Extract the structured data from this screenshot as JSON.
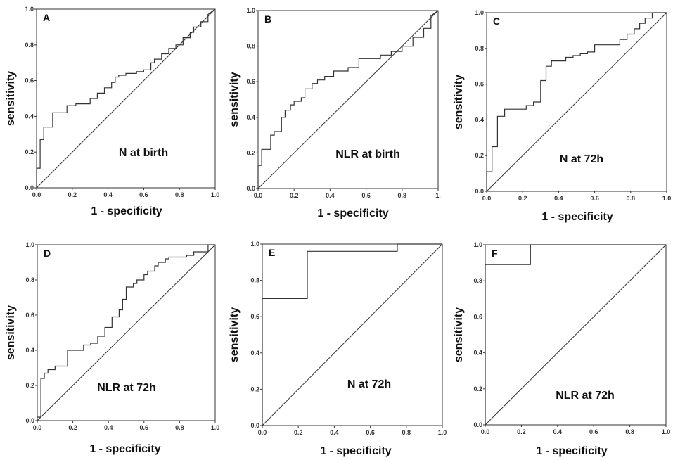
{
  "chart_data": [
    {
      "panel": "A",
      "type": "line",
      "title": "N at birth",
      "xlabel": "1 - specificity",
      "ylabel": "sensitivity",
      "xlim": [
        0,
        1
      ],
      "ylim": [
        0,
        1
      ],
      "xtick_labels": [
        "0.0",
        "0.2",
        "0.4",
        "0.6",
        "0.8",
        "1.0"
      ],
      "ytick_labels": [
        "0.0",
        "0.2",
        "0.4",
        "0.6",
        "0.8",
        "1.0"
      ],
      "series": [
        {
          "name": "ROC",
          "x": [
            0.0,
            0.0,
            0.02,
            0.02,
            0.04,
            0.04,
            0.09,
            0.09,
            0.17,
            0.17,
            0.22,
            0.22,
            0.3,
            0.3,
            0.34,
            0.34,
            0.38,
            0.38,
            0.42,
            0.42,
            0.44,
            0.44,
            0.46,
            0.46,
            0.5,
            0.5,
            0.56,
            0.56,
            0.6,
            0.6,
            0.64,
            0.64,
            0.66,
            0.66,
            0.7,
            0.7,
            0.74,
            0.74,
            0.78,
            0.78,
            0.82,
            0.82,
            0.86,
            0.86,
            0.88,
            0.88,
            0.92,
            0.92,
            0.96,
            0.96,
            1.0
          ],
          "y": [
            0.0,
            0.11,
            0.11,
            0.27,
            0.27,
            0.34,
            0.34,
            0.42,
            0.42,
            0.46,
            0.46,
            0.47,
            0.47,
            0.5,
            0.5,
            0.53,
            0.53,
            0.56,
            0.56,
            0.59,
            0.59,
            0.62,
            0.62,
            0.63,
            0.63,
            0.64,
            0.64,
            0.65,
            0.65,
            0.66,
            0.66,
            0.7,
            0.7,
            0.72,
            0.72,
            0.75,
            0.75,
            0.78,
            0.78,
            0.8,
            0.8,
            0.84,
            0.84,
            0.87,
            0.87,
            0.9,
            0.9,
            0.93,
            0.93,
            0.97,
            1.0
          ]
        },
        {
          "name": "reference",
          "x": [
            0,
            1
          ],
          "y": [
            0,
            1
          ]
        }
      ]
    },
    {
      "panel": "B",
      "type": "line",
      "title": "NLR at birth",
      "xlabel": "1 - specificity",
      "ylabel": "sensitivity",
      "xlim": [
        0,
        1
      ],
      "ylim": [
        0,
        1
      ],
      "xtick_labels": [
        "0.0",
        "0.2",
        "0.4",
        "0.6",
        "0.8",
        "1."
      ],
      "ytick_labels": [
        "0.0",
        "0.2",
        "0.4",
        "0.6",
        "0.8",
        "1.0"
      ],
      "series": [
        {
          "name": "ROC",
          "x": [
            0.0,
            0.0,
            0.02,
            0.02,
            0.07,
            0.07,
            0.09,
            0.09,
            0.13,
            0.13,
            0.15,
            0.15,
            0.18,
            0.18,
            0.2,
            0.2,
            0.24,
            0.24,
            0.26,
            0.26,
            0.3,
            0.3,
            0.33,
            0.33,
            0.37,
            0.37,
            0.42,
            0.42,
            0.5,
            0.5,
            0.56,
            0.56,
            0.68,
            0.68,
            0.74,
            0.74,
            0.8,
            0.8,
            0.86,
            0.86,
            0.92,
            0.92,
            0.96,
            0.96,
            1.0
          ],
          "y": [
            0.0,
            0.13,
            0.13,
            0.22,
            0.22,
            0.3,
            0.3,
            0.32,
            0.32,
            0.4,
            0.4,
            0.44,
            0.44,
            0.47,
            0.47,
            0.49,
            0.49,
            0.51,
            0.51,
            0.56,
            0.56,
            0.59,
            0.59,
            0.61,
            0.61,
            0.63,
            0.63,
            0.66,
            0.66,
            0.68,
            0.68,
            0.73,
            0.73,
            0.75,
            0.75,
            0.77,
            0.77,
            0.8,
            0.8,
            0.85,
            0.85,
            0.9,
            0.9,
            0.97,
            1.0
          ]
        },
        {
          "name": "reference",
          "x": [
            0,
            1
          ],
          "y": [
            0,
            1
          ]
        }
      ]
    },
    {
      "panel": "C",
      "type": "line",
      "title": "N at 72h",
      "xlabel": "1 - specificity",
      "ylabel": "sensitivity",
      "xlim": [
        0,
        1
      ],
      "ylim": [
        0,
        1
      ],
      "xtick_labels": [
        "0.0",
        "0.2",
        "0.4",
        "0.6",
        "0.8",
        "1.0"
      ],
      "ytick_labels": [
        "0.0",
        "0.2",
        "0.4",
        "0.6",
        "0.8",
        "1.0"
      ],
      "series": [
        {
          "name": "ROC",
          "x": [
            0.0,
            0.0,
            0.03,
            0.03,
            0.06,
            0.06,
            0.1,
            0.1,
            0.22,
            0.22,
            0.26,
            0.26,
            0.3,
            0.3,
            0.33,
            0.33,
            0.36,
            0.36,
            0.44,
            0.44,
            0.48,
            0.48,
            0.52,
            0.52,
            0.56,
            0.56,
            0.6,
            0.6,
            0.74,
            0.74,
            0.78,
            0.78,
            0.82,
            0.82,
            0.85,
            0.85,
            0.88,
            0.88,
            0.92,
            0.92,
            1.0
          ],
          "y": [
            0.0,
            0.11,
            0.11,
            0.25,
            0.25,
            0.42,
            0.42,
            0.46,
            0.46,
            0.48,
            0.48,
            0.5,
            0.5,
            0.62,
            0.62,
            0.7,
            0.7,
            0.73,
            0.73,
            0.75,
            0.75,
            0.76,
            0.76,
            0.77,
            0.77,
            0.78,
            0.78,
            0.82,
            0.82,
            0.85,
            0.85,
            0.88,
            0.88,
            0.91,
            0.91,
            0.94,
            0.94,
            0.97,
            0.97,
            1.0,
            1.0
          ]
        },
        {
          "name": "reference",
          "x": [
            0,
            1
          ],
          "y": [
            0,
            1
          ]
        }
      ]
    },
    {
      "panel": "D",
      "type": "line",
      "title": "NLR at 72h",
      "xlabel": "1 - specificity",
      "ylabel": "sensitivity",
      "xlim": [
        0,
        1
      ],
      "ylim": [
        0,
        1
      ],
      "xtick_labels": [
        "0.0",
        "0.2",
        "0.4",
        "0.6",
        "0.8",
        "1.0"
      ],
      "ytick_labels": [
        "0.0",
        "0.2",
        "0.4",
        "0.6",
        "0.8",
        "1.0"
      ],
      "series": [
        {
          "name": "ROC",
          "x": [
            0.0,
            0.02,
            0.02,
            0.04,
            0.04,
            0.06,
            0.06,
            0.1,
            0.1,
            0.17,
            0.17,
            0.26,
            0.26,
            0.3,
            0.3,
            0.34,
            0.34,
            0.38,
            0.38,
            0.42,
            0.42,
            0.46,
            0.46,
            0.48,
            0.48,
            0.5,
            0.5,
            0.54,
            0.54,
            0.56,
            0.56,
            0.6,
            0.6,
            0.62,
            0.62,
            0.66,
            0.66,
            0.68,
            0.68,
            0.72,
            0.72,
            0.74,
            0.74,
            0.84,
            0.84,
            0.88,
            0.88,
            0.96,
            0.96,
            1.0
          ],
          "y": [
            0.02,
            0.02,
            0.24,
            0.24,
            0.27,
            0.27,
            0.29,
            0.29,
            0.31,
            0.31,
            0.4,
            0.4,
            0.43,
            0.43,
            0.44,
            0.44,
            0.48,
            0.48,
            0.53,
            0.53,
            0.59,
            0.59,
            0.63,
            0.63,
            0.69,
            0.69,
            0.76,
            0.76,
            0.78,
            0.78,
            0.8,
            0.8,
            0.83,
            0.83,
            0.85,
            0.85,
            0.88,
            0.88,
            0.9,
            0.9,
            0.92,
            0.92,
            0.93,
            0.93,
            0.94,
            0.94,
            0.96,
            0.96,
            1.0,
            1.0
          ]
        },
        {
          "name": "reference",
          "x": [
            0,
            1
          ],
          "y": [
            0,
            1
          ]
        }
      ]
    },
    {
      "panel": "E",
      "type": "line",
      "title": "N at 72h",
      "xlabel": "1 - specificity",
      "ylabel": "sensitivity",
      "xlim": [
        0,
        1
      ],
      "ylim": [
        0,
        1
      ],
      "xtick_labels": [
        "0.0",
        "0.2",
        "0.4",
        "0.6",
        "0.8",
        "1.0"
      ],
      "ytick_labels": [
        "0.0",
        "0.2",
        "0.4",
        "0.6",
        "0.8",
        "1.0"
      ],
      "series": [
        {
          "name": "ROC",
          "x": [
            0.0,
            0.0,
            0.25,
            0.25,
            0.75,
            0.75,
            1.0
          ],
          "y": [
            0.0,
            0.7,
            0.7,
            0.96,
            0.96,
            1.0,
            1.0
          ]
        },
        {
          "name": "reference",
          "x": [
            0,
            1
          ],
          "y": [
            0,
            1
          ]
        }
      ]
    },
    {
      "panel": "F",
      "type": "line",
      "title": "NLR at 72h",
      "xlabel": "1 - specificity",
      "ylabel": "sensitivity",
      "xlim": [
        0,
        1
      ],
      "ylim": [
        0,
        1
      ],
      "xtick_labels": [
        "0.0",
        "0.2",
        "0.4",
        "0.6",
        "0.8",
        "1.0"
      ],
      "ytick_labels": [
        "0.0",
        "0.2",
        "0.4",
        "0.6",
        "0.8",
        "1.0"
      ],
      "series": [
        {
          "name": "ROC",
          "x": [
            0.0,
            0.0,
            0.25,
            0.25,
            1.0
          ],
          "y": [
            0.0,
            0.89,
            0.89,
            1.0,
            1.0
          ]
        },
        {
          "name": "reference",
          "x": [
            0,
            1
          ],
          "y": [
            0,
            1
          ]
        }
      ]
    }
  ]
}
